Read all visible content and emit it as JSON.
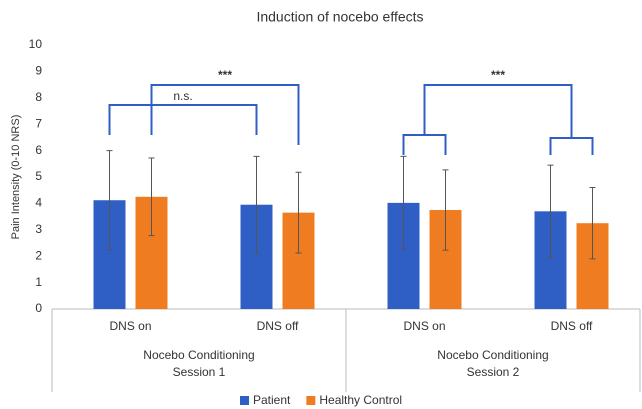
{
  "chart_data": {
    "type": "bar",
    "title": "Induction of nocebo effects",
    "y_label": "Pain Intensity (0-10 NRS)",
    "categories": [
      "DNS on",
      "DNS off",
      "DNS on",
      "DNS off"
    ],
    "groups": [
      [
        "Nocebo Conditioning",
        "Session 1"
      ],
      [
        "Nocebo Conditioning",
        "Session 2"
      ]
    ],
    "series": [
      {
        "name": "Patient",
        "color": "#2f5fc4",
        "values": [
          4.12,
          3.95,
          4.02,
          3.7
        ],
        "errors": [
          1.88,
          1.83,
          1.76,
          1.75
        ]
      },
      {
        "name": "Healthy Control",
        "color": "#f07c22",
        "values": [
          4.25,
          3.65,
          3.75,
          3.25
        ],
        "errors": [
          1.47,
          1.53,
          1.52,
          1.35
        ]
      }
    ],
    "ylim": [
      0,
      10
    ],
    "yticks": [
      0,
      1,
      2,
      3,
      4,
      5,
      6,
      7,
      8,
      9,
      10
    ],
    "annotations": [
      "n.s.",
      "***",
      "***"
    ],
    "legend": "bottom"
  }
}
